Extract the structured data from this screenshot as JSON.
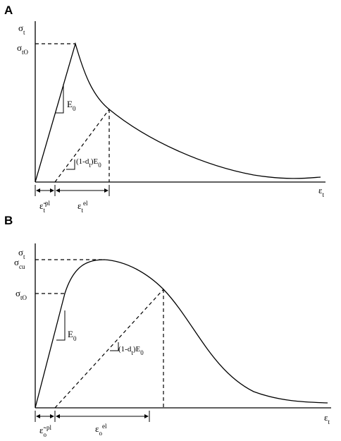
{
  "panel_a": {
    "label": "A",
    "y_axis": [
      "σ",
      "t"
    ],
    "x_axis": [
      "ε",
      "t"
    ],
    "peak": [
      "σ",
      "tO"
    ],
    "slope_elastic": [
      "E",
      "0"
    ],
    "slope_damaged": [
      "(1-d",
      "t",
      ")E",
      "0"
    ],
    "strain_plastic": [
      "ε̃",
      "t",
      "pl"
    ],
    "strain_elastic": [
      "ε",
      "t",
      "el"
    ]
  },
  "panel_b": {
    "label": "B",
    "y_axis": [
      "σ",
      "t"
    ],
    "x_axis": [
      "ε",
      "t"
    ],
    "peak": [
      "σ",
      "cu"
    ],
    "initial": [
      "σ",
      "tO"
    ],
    "slope_elastic": [
      "E",
      "0"
    ],
    "slope_damaged": [
      "(1-d",
      "t",
      ")E",
      "0"
    ],
    "strain_plastic": [
      "ε̃",
      "o",
      "pl"
    ],
    "strain_elastic": [
      "ε",
      "o",
      "el"
    ]
  }
}
